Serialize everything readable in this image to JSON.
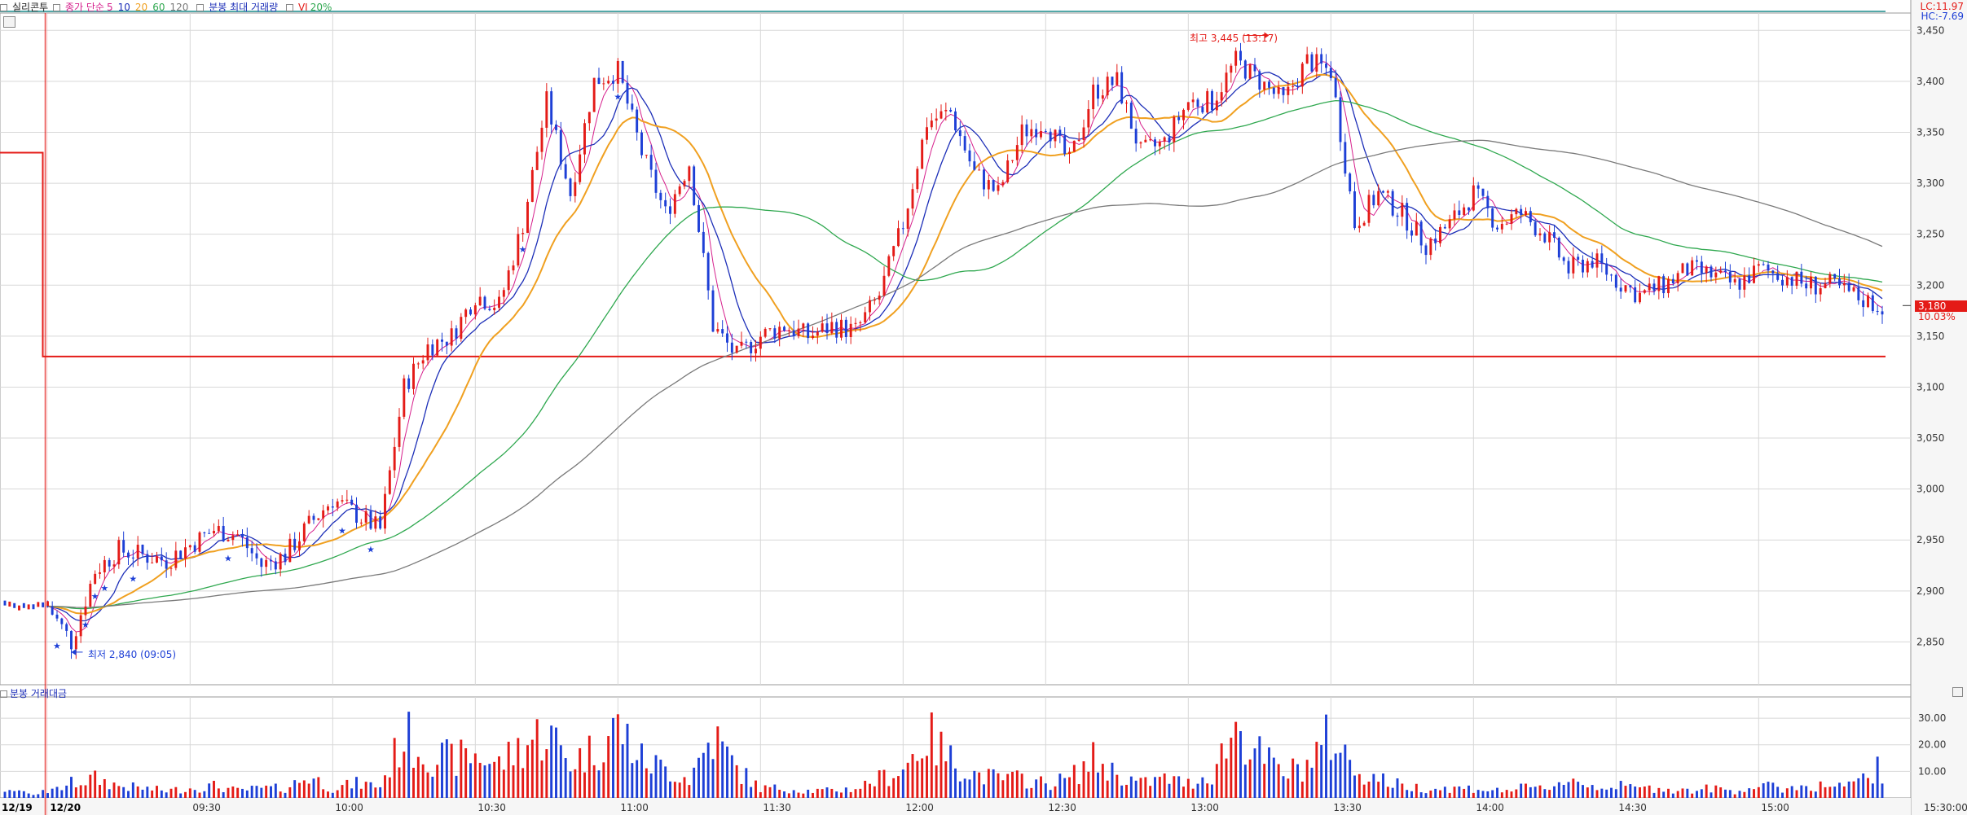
{
  "header": {
    "symbol": "실리콘투",
    "ma_label": "종가 단순",
    "ma_periods": [
      {
        "period": "5",
        "color": "#d61f8c"
      },
      {
        "period": "10",
        "color": "#1d2fb8"
      },
      {
        "period": "20",
        "color": "#f0a020"
      },
      {
        "period": "60",
        "color": "#2fa84f"
      },
      {
        "period": "120",
        "color": "#7a7a7a"
      }
    ],
    "max_volume_label": "분봉 최대 거래량",
    "vi_label": "VI",
    "vi_value": "20%"
  },
  "right_labels": {
    "lc": "LC:11.97",
    "hc": "HC:-7.69",
    "current_price": "3,180",
    "current_pct": "10.03%"
  },
  "volume_panel": {
    "title": "분봉 거래대금"
  },
  "annotations": {
    "high": "최고 3,445 (13:17)",
    "low": "최저 2,840 (09:05)"
  },
  "colors": {
    "up": "#e41b17",
    "down": "#1d3fd6",
    "ma5": "#d61f8c",
    "ma10": "#1d2fb8",
    "ma20": "#f0a020",
    "ma60": "#2fa84f",
    "ma120": "#7a7a7a",
    "grid": "#d8d8d8",
    "prev_close": "#e41b17",
    "top_line": "#1a8c8c"
  },
  "chart_data": {
    "type": "candlestick",
    "price_axis": {
      "ticks": [
        3450,
        3400,
        3350,
        3300,
        3250,
        3200,
        3150,
        3100,
        3050,
        3000,
        2950,
        2900,
        2850
      ],
      "tick_labels": [
        "3,450",
        "3,400",
        "3,350",
        "3,300",
        "3,250",
        "3,200",
        "3,150",
        "3,100",
        "3,050",
        "3,000",
        "2,950",
        "2,900",
        "2,850"
      ],
      "range": [
        2808,
        3467
      ]
    },
    "volume_axis": {
      "ticks": [
        10,
        20,
        30
      ],
      "tick_labels": [
        "10.00",
        "20.00",
        "30.00"
      ],
      "range": [
        0,
        38
      ]
    },
    "time_axis": {
      "labels": [
        "12/19",
        "12/20",
        "09:30",
        "10:00",
        "10:30",
        "11:00",
        "11:30",
        "12:00",
        "12:30",
        "13:00",
        "13:30",
        "14:00",
        "14:30",
        "15:00",
        "15:30:00"
      ],
      "minutes": [
        -8,
        0,
        30,
        60,
        90,
        120,
        150,
        180,
        210,
        240,
        270,
        300,
        330,
        360,
        400
      ],
      "range_minutes": [
        -10,
        392
      ]
    },
    "prev_day": {
      "close": 3330,
      "minutes": [
        -10,
        -1
      ]
    },
    "reference_line": 3130,
    "high": {
      "price": 3445,
      "time": "13:17"
    },
    "low": {
      "price": 2840,
      "time": "09:05"
    },
    "last_price": 3180,
    "price_path": [
      [
        0,
        2885
      ],
      [
        5,
        2850
      ],
      [
        10,
        2920
      ],
      [
        15,
        2940
      ],
      [
        20,
        2935
      ],
      [
        25,
        2930
      ],
      [
        30,
        2945
      ],
      [
        35,
        2960
      ],
      [
        40,
        2955
      ],
      [
        45,
        2925
      ],
      [
        50,
        2935
      ],
      [
        55,
        2965
      ],
      [
        60,
        2990
      ],
      [
        65,
        2975
      ],
      [
        70,
        2960
      ],
      [
        75,
        3100
      ],
      [
        80,
        3140
      ],
      [
        85,
        3150
      ],
      [
        90,
        3190
      ],
      [
        95,
        3180
      ],
      [
        100,
        3260
      ],
      [
        105,
        3380
      ],
      [
        110,
        3290
      ],
      [
        115,
        3400
      ],
      [
        120,
        3410
      ],
      [
        125,
        3330
      ],
      [
        130,
        3270
      ],
      [
        135,
        3320
      ],
      [
        140,
        3160
      ],
      [
        145,
        3130
      ],
      [
        150,
        3150
      ],
      [
        155,
        3160
      ],
      [
        160,
        3150
      ],
      [
        165,
        3160
      ],
      [
        170,
        3155
      ],
      [
        175,
        3190
      ],
      [
        180,
        3260
      ],
      [
        185,
        3360
      ],
      [
        190,
        3370
      ],
      [
        195,
        3310
      ],
      [
        200,
        3290
      ],
      [
        205,
        3350
      ],
      [
        210,
        3360
      ],
      [
        215,
        3320
      ],
      [
        220,
        3390
      ],
      [
        225,
        3400
      ],
      [
        230,
        3330
      ],
      [
        235,
        3340
      ],
      [
        240,
        3380
      ],
      [
        245,
        3380
      ],
      [
        250,
        3420
      ],
      [
        255,
        3400
      ],
      [
        260,
        3380
      ],
      [
        265,
        3420
      ],
      [
        270,
        3410
      ],
      [
        275,
        3260
      ],
      [
        280,
        3290
      ],
      [
        285,
        3270
      ],
      [
        290,
        3240
      ],
      [
        295,
        3260
      ],
      [
        300,
        3290
      ],
      [
        305,
        3260
      ],
      [
        310,
        3270
      ],
      [
        315,
        3250
      ],
      [
        320,
        3215
      ],
      [
        325,
        3225
      ],
      [
        330,
        3205
      ],
      [
        335,
        3190
      ],
      [
        340,
        3200
      ],
      [
        345,
        3215
      ],
      [
        350,
        3210
      ],
      [
        355,
        3200
      ],
      [
        360,
        3215
      ],
      [
        365,
        3210
      ],
      [
        370,
        3200
      ],
      [
        375,
        3200
      ],
      [
        380,
        3190
      ],
      [
        385,
        3180
      ]
    ],
    "volume_profile": [
      [
        0,
        2
      ],
      [
        5,
        6
      ],
      [
        10,
        8
      ],
      [
        15,
        5
      ],
      [
        20,
        4
      ],
      [
        25,
        3
      ],
      [
        30,
        4
      ],
      [
        35,
        5
      ],
      [
        40,
        3
      ],
      [
        45,
        4
      ],
      [
        50,
        4
      ],
      [
        55,
        9
      ],
      [
        60,
        4
      ],
      [
        65,
        6
      ],
      [
        70,
        5
      ],
      [
        75,
        26
      ],
      [
        80,
        18
      ],
      [
        85,
        16
      ],
      [
        90,
        18
      ],
      [
        95,
        14
      ],
      [
        100,
        22
      ],
      [
        105,
        28
      ],
      [
        110,
        15
      ],
      [
        115,
        20
      ],
      [
        120,
        30
      ],
      [
        125,
        16
      ],
      [
        130,
        12
      ],
      [
        135,
        8
      ],
      [
        140,
        26
      ],
      [
        145,
        12
      ],
      [
        150,
        4
      ],
      [
        155,
        4
      ],
      [
        160,
        3
      ],
      [
        165,
        3
      ],
      [
        170,
        4
      ],
      [
        175,
        8
      ],
      [
        180,
        12
      ],
      [
        185,
        26
      ],
      [
        190,
        16
      ],
      [
        195,
        10
      ],
      [
        200,
        8
      ],
      [
        205,
        8
      ],
      [
        210,
        6
      ],
      [
        215,
        8
      ],
      [
        220,
        16
      ],
      [
        225,
        10
      ],
      [
        230,
        6
      ],
      [
        235,
        8
      ],
      [
        240,
        6
      ],
      [
        245,
        10
      ],
      [
        250,
        30
      ],
      [
        255,
        18
      ],
      [
        260,
        10
      ],
      [
        265,
        14
      ],
      [
        270,
        26
      ],
      [
        275,
        12
      ],
      [
        280,
        8
      ],
      [
        285,
        5
      ],
      [
        290,
        4
      ],
      [
        295,
        4
      ],
      [
        300,
        4
      ],
      [
        305,
        3
      ],
      [
        310,
        4
      ],
      [
        315,
        4
      ],
      [
        320,
        8
      ],
      [
        325,
        5
      ],
      [
        330,
        5
      ],
      [
        335,
        4
      ],
      [
        340,
        4
      ],
      [
        345,
        3
      ],
      [
        350,
        4
      ],
      [
        355,
        3
      ],
      [
        360,
        5
      ],
      [
        365,
        4
      ],
      [
        370,
        5
      ],
      [
        375,
        5
      ],
      [
        380,
        5
      ],
      [
        385,
        12
      ]
    ]
  }
}
